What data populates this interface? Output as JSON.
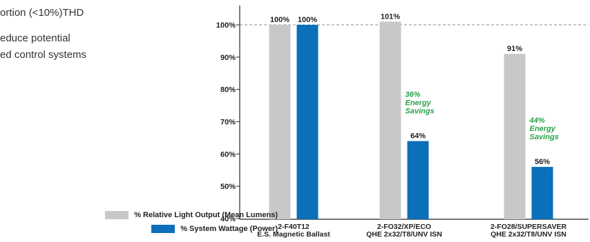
{
  "left_text": {
    "line1": "ortion (<10%)THD",
    "line2": "educe potential",
    "line3": "ed control systems"
  },
  "chart_data": {
    "type": "bar",
    "categories": [
      [
        "2-F40T12",
        "E.S. Magnetic Ballast"
      ],
      [
        "2-FO32/XP/ECO",
        "QHE 2x32/T8/UNV ISN"
      ],
      [
        "2-FO28/SUPERSAVER",
        "QHE 2x32/T8/UNV ISN"
      ]
    ],
    "series": [
      {
        "name": "% Relative Light Output (Mean Lumens)",
        "values": [
          100,
          101,
          91
        ],
        "color": "#c8c8c8"
      },
      {
        "name": "% System Wattage (Power)",
        "values": [
          100,
          64,
          56
        ],
        "color": "#0b6fba"
      }
    ],
    "data_labels": [
      [
        "100%",
        "100%"
      ],
      [
        "101%",
        "64%"
      ],
      [
        "91%",
        "56%"
      ]
    ],
    "annotations": [
      {
        "category_index": 1,
        "lines": [
          "36%",
          "Energy",
          "Savings"
        ],
        "color": "#2aa04a"
      },
      {
        "category_index": 2,
        "lines": [
          "44%",
          "Energy",
          "Savings"
        ],
        "color": "#2aa04a"
      }
    ],
    "y_ticks": [
      "40%",
      "50%",
      "60%",
      "70%",
      "80%",
      "90%",
      "100%"
    ],
    "y_tick_values": [
      40,
      50,
      60,
      70,
      80,
      90,
      100
    ],
    "ylim": [
      40,
      106
    ],
    "reference_line": 100,
    "legend_position": "bottom-left",
    "grid": false
  }
}
